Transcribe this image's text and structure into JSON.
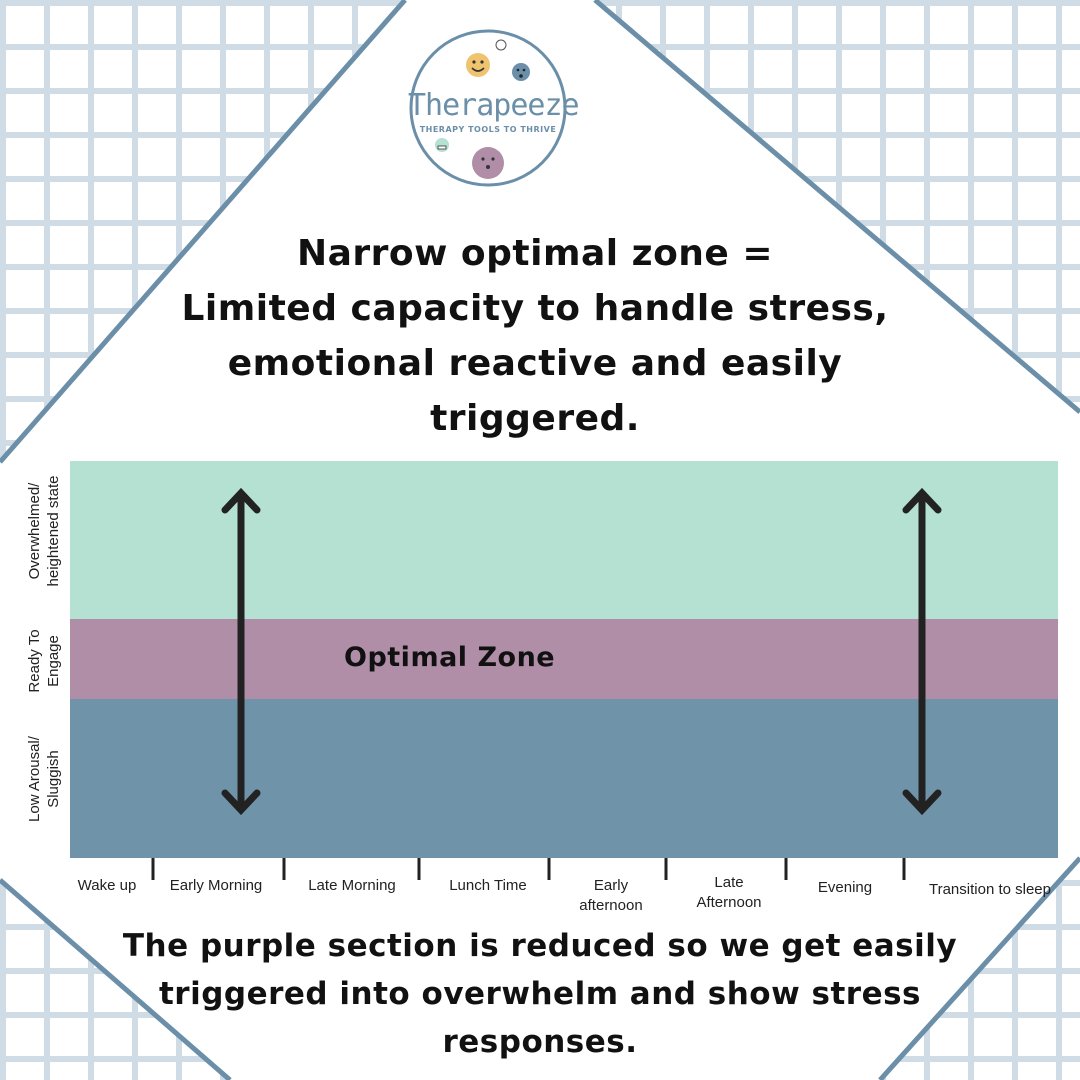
{
  "colors": {
    "zone_high": "#b4e1d2",
    "zone_optimal": "#b08ea8",
    "zone_low": "#6f94aa",
    "frame": "#6b8fa8",
    "grid": "#c8d4de"
  },
  "logo": {
    "name": "Therapeeze",
    "tagline": "THERAPY TOOLS TO THRIVE"
  },
  "headline": "Narrow optimal zone =\nLimited capacity to handle stress,\nemotional reactive and easily\ntriggered.",
  "zones": {
    "high_label": "Overwhelmed/\nheightened state",
    "optimal_label": "Ready To\nEngage",
    "low_label": "Low Arousal/\nSluggish",
    "optimal_zone_text": "Optimal Zone"
  },
  "time_axis": [
    "Wake up",
    "Early Morning",
    "Late Morning",
    "Lunch  Time",
    "Early\nafternoon",
    "Late\nAfternoon",
    "Evening",
    "Transition to sleep"
  ],
  "footer": "The purple section is reduced so we get easily\ntriggered into overwhelm and show stress\nresponses."
}
